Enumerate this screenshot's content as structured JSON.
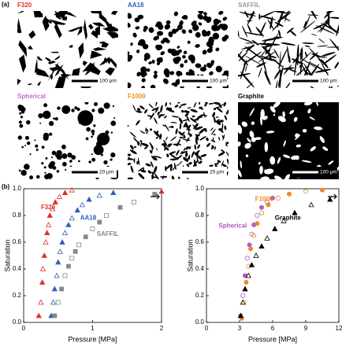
{
  "panel_labels": [
    "(a)",
    "(b)"
  ],
  "micrographs": [
    {
      "label": "F320",
      "scale": "100 µm",
      "color": "#e0302a"
    },
    {
      "label": "AA18",
      "scale": "100 µm",
      "color": "#2f5fb8"
    },
    {
      "label": "SAFFIL",
      "scale": "100 µm",
      "color": "#999999"
    },
    {
      "label": "Spherical",
      "scale": "20 µm",
      "color": "#c070c8"
    },
    {
      "label": "F1000",
      "scale": "20 µm",
      "color": "#f08a24"
    },
    {
      "label": "Graphite",
      "scale": "100 µm",
      "color": "#000000"
    }
  ],
  "chart_data": [
    {
      "type": "scatter",
      "xlabel": "Pressure [MPa]",
      "ylabel": "Saturation",
      "xlim": [
        0,
        2
      ],
      "xticks": [
        0,
        1,
        2
      ],
      "ylim": [
        0,
        1
      ],
      "yticks": [
        {
          "value": 0,
          "label": "0.0"
        },
        {
          "value": 0.2,
          "label": "0.2"
        },
        {
          "value": 0.4,
          "label": "0.4"
        },
        {
          "value": 0.6,
          "label": "0.6"
        },
        {
          "value": 0.8,
          "label": "0.8"
        },
        {
          "value": 1,
          "label": "1.0"
        }
      ],
      "series": [
        {
          "name": "F320",
          "color": "#e0302a",
          "marker": "triangle",
          "x": [
            0.22,
            0.25,
            0.27,
            0.28,
            0.3,
            0.32,
            0.34,
            0.36,
            0.38,
            0.42,
            0.46,
            0.52,
            0.6,
            0.7,
            2.0
          ],
          "values": [
            0.05,
            0.15,
            0.3,
            0.4,
            0.5,
            0.6,
            0.67,
            0.73,
            0.8,
            0.85,
            0.9,
            0.94,
            0.97,
            0.99,
            0.98
          ]
        },
        {
          "name": "AA18",
          "color": "#2f5fb8",
          "marker": "triangle",
          "x": [
            0.4,
            0.43,
            0.45,
            0.48,
            0.5,
            0.53,
            0.56,
            0.6,
            0.65,
            0.7,
            0.78,
            0.85,
            0.95,
            1.1,
            1.3
          ],
          "values": [
            0.05,
            0.15,
            0.25,
            0.35,
            0.45,
            0.53,
            0.6,
            0.67,
            0.73,
            0.78,
            0.84,
            0.88,
            0.92,
            0.95,
            0.97
          ]
        },
        {
          "name": "SAFFIL",
          "color": "#888888",
          "marker": "square",
          "x": [
            0.45,
            0.5,
            0.55,
            0.6,
            0.65,
            0.7,
            0.75,
            0.8,
            0.9,
            1.0,
            1.1,
            1.2,
            1.4,
            1.6,
            1.9
          ],
          "values": [
            0.05,
            0.15,
            0.25,
            0.35,
            0.42,
            0.48,
            0.53,
            0.58,
            0.64,
            0.7,
            0.75,
            0.8,
            0.86,
            0.9,
            0.96
          ]
        }
      ]
    },
    {
      "type": "scatter",
      "xlabel": "Pressure [MPa]",
      "ylabel": "Saturation",
      "xlim": [
        0,
        12
      ],
      "xticks": [
        0,
        3,
        6,
        9,
        12
      ],
      "ylim": [
        0,
        1
      ],
      "yticks": [
        {
          "value": 0,
          "label": "0.0"
        },
        {
          "value": 0.2,
          "label": "0.2"
        },
        {
          "value": 0.4,
          "label": "0.4"
        },
        {
          "value": 0.6,
          "label": "0.6"
        },
        {
          "value": 0.8,
          "label": "0.8"
        },
        {
          "value": 1,
          "label": "1.0"
        }
      ],
      "series": [
        {
          "name": "Spherical",
          "color": "#b35ac0",
          "marker": "circle",
          "x": [
            3.1,
            3.3,
            3.5,
            3.7,
            3.9,
            4.1,
            4.3,
            4.6,
            5.0,
            5.5,
            6.0
          ],
          "values": [
            0.05,
            0.2,
            0.35,
            0.48,
            0.58,
            0.66,
            0.73,
            0.8,
            0.86,
            0.9,
            0.93
          ]
        },
        {
          "name": "F1000",
          "color": "#f08a24",
          "marker": "circle",
          "x": [
            3.2,
            3.4,
            3.6,
            3.8,
            4.0,
            4.3,
            4.6,
            5.0,
            5.6,
            6.5,
            7.5,
            9,
            10.5
          ],
          "values": [
            0.03,
            0.15,
            0.3,
            0.42,
            0.55,
            0.65,
            0.74,
            0.82,
            0.88,
            0.93,
            0.96,
            0.98,
            0.99
          ]
        },
        {
          "name": "Graphite",
          "color": "#000000",
          "marker": "triangle",
          "x": [
            3.1,
            3.3,
            3.5,
            3.8,
            4.1,
            4.5,
            5.0,
            5.5,
            6.2,
            7,
            8,
            9.5,
            11.2
          ],
          "values": [
            0.05,
            0.15,
            0.25,
            0.35,
            0.43,
            0.5,
            0.57,
            0.63,
            0.7,
            0.76,
            0.82,
            0.88,
            0.92
          ]
        }
      ]
    }
  ]
}
